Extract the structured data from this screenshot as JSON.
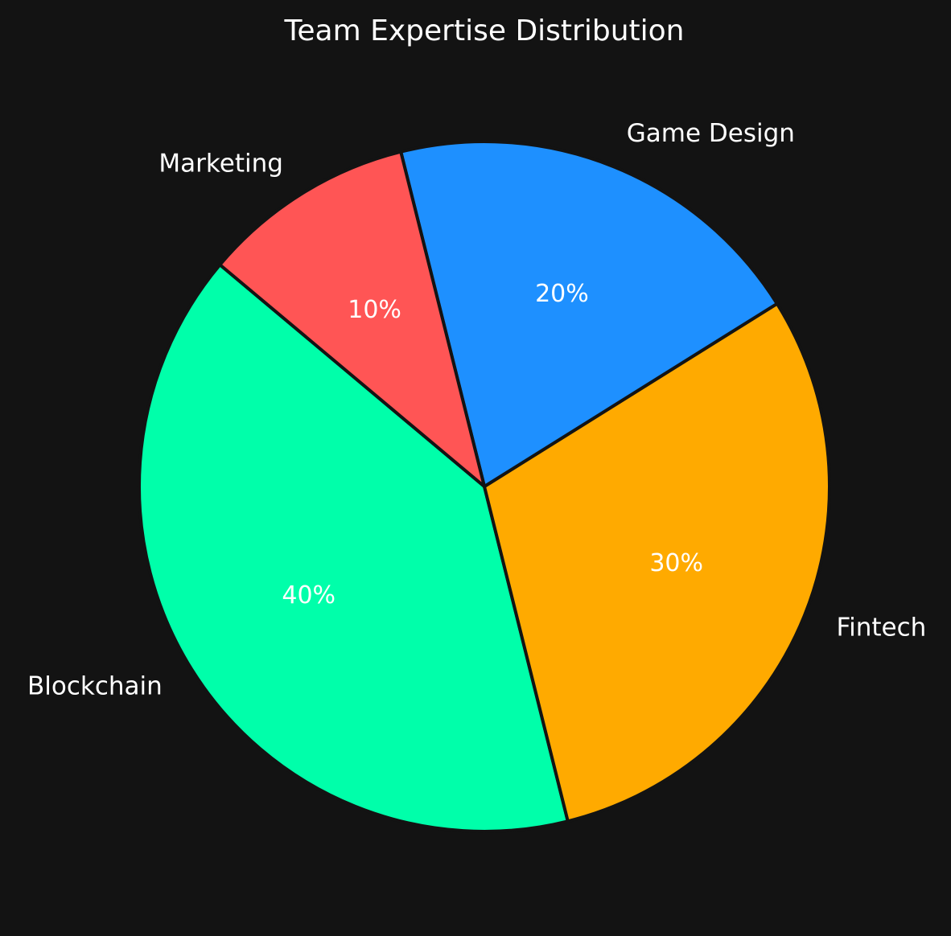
{
  "chart_data": {
    "type": "pie",
    "title": "Team Expertise Distribution",
    "slices": [
      {
        "label": "Blockchain",
        "value": 40,
        "pct_label": "40%",
        "color": "#00ffaa"
      },
      {
        "label": "Fintech",
        "value": 30,
        "pct_label": "30%",
        "color": "#ffaa00"
      },
      {
        "label": "Game Design",
        "value": 20,
        "pct_label": "20%",
        "color": "#1e90ff"
      },
      {
        "label": "Marketing",
        "value": 10,
        "pct_label": "10%",
        "color": "#ff5555"
      }
    ],
    "start_angle_deg": 140,
    "direction": "counterclockwise",
    "background": "#131313",
    "text_color": "#ffffff"
  }
}
